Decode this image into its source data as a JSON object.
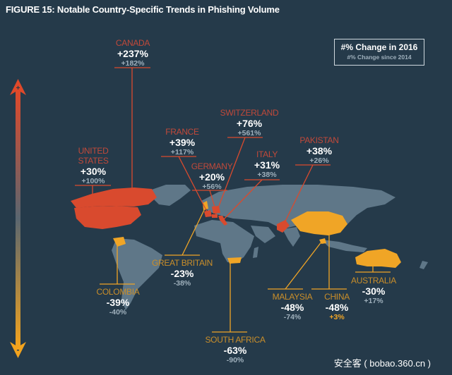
{
  "title": "FIGURE 15: Notable Country-Specific Trends in Phishing Volume",
  "legend": {
    "primary": "#% Change in 2016",
    "secondary": "#% Change since 2014"
  },
  "scale_arrow": {
    "top_symbol": "+",
    "bottom_symbol": "-"
  },
  "colors": {
    "background": "#253a4a",
    "increase": "#d94a2e",
    "decrease": "#f0a526",
    "land": "#5f7788"
  },
  "countries": {
    "canada": {
      "name": "CANADA",
      "change_2016": "+237%",
      "change_since_2014": "+182%"
    },
    "united_states": {
      "name_line1": "UNITED",
      "name_line2": "STATES",
      "change_2016": "+30%",
      "change_since_2014": "+100%"
    },
    "france": {
      "name": "FRANCE",
      "change_2016": "+39%",
      "change_since_2014": "+117%"
    },
    "switzerland": {
      "name": "SWITZERLAND",
      "change_2016": "+76%",
      "change_since_2014": "+561%"
    },
    "germany": {
      "name": "GERMANY",
      "change_2016": "+20%",
      "change_since_2014": "+56%"
    },
    "italy": {
      "name": "ITALY",
      "change_2016": "+31%",
      "change_since_2014": "+38%"
    },
    "pakistan": {
      "name": "PAKISTAN",
      "change_2016": "+38%",
      "change_since_2014": "+26%"
    },
    "colombia": {
      "name": "COLOMBIA",
      "change_2016": "-39%",
      "change_since_2014": "-40%"
    },
    "great_britain": {
      "name": "GREAT BRITAIN",
      "change_2016": "-23%",
      "change_since_2014": "-38%"
    },
    "south_africa": {
      "name": "SOUTH AFRICA",
      "change_2016": "-63%",
      "change_since_2014": "-90%"
    },
    "malaysia": {
      "name": "MALAYSIA",
      "change_2016": "-48%",
      "change_since_2014": "-74%"
    },
    "china": {
      "name": "CHINA",
      "change_2016": "-48%",
      "change_since_2014": "+3%"
    },
    "australia": {
      "name": "AUSTRALIA",
      "change_2016": "-30%",
      "change_since_2014": "+17%"
    }
  },
  "watermark": "安全客 ( bobao.360.cn )"
}
